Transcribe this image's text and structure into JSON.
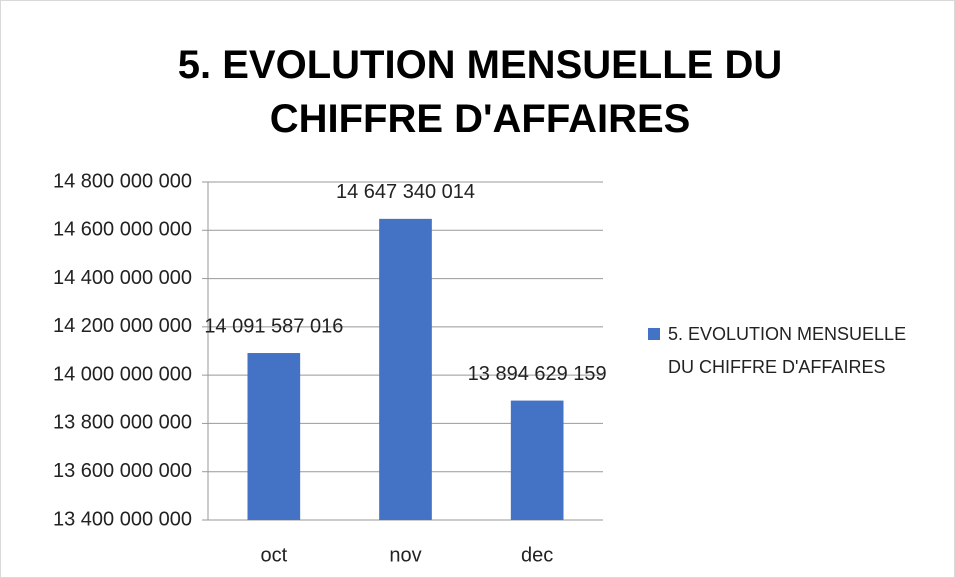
{
  "chart_data": {
    "type": "bar",
    "title": "5. EVOLUTION MENSUELLE DU CHIFFRE D'AFFAIRES",
    "categories": [
      "oct",
      "nov",
      "dec"
    ],
    "series": [
      {
        "name": "5. EVOLUTION MENSUELLE DU CHIFFRE D'AFFAIRES",
        "color": "#4472c4",
        "values": [
          14091587016,
          14647340014,
          13894629159
        ],
        "value_labels": [
          "14 091 587 016",
          "14 647 340 014",
          "13 894 629 159"
        ]
      }
    ],
    "ylim": [
      13400000000,
      14800000000
    ],
    "yticks": [
      {
        "value": 13400000000,
        "label": "13 400 000 000"
      },
      {
        "value": 13600000000,
        "label": "13 600 000 000"
      },
      {
        "value": 13800000000,
        "label": "13 800 000 000"
      },
      {
        "value": 14000000000,
        "label": "14 000 000 000"
      },
      {
        "value": 14200000000,
        "label": "14 200 000 000"
      },
      {
        "value": 14400000000,
        "label": "14 400 000 000"
      },
      {
        "value": 14600000000,
        "label": "14 600 000 000"
      },
      {
        "value": 14800000000,
        "label": "14 800 000 000"
      }
    ],
    "grid": true,
    "legend": "right"
  }
}
